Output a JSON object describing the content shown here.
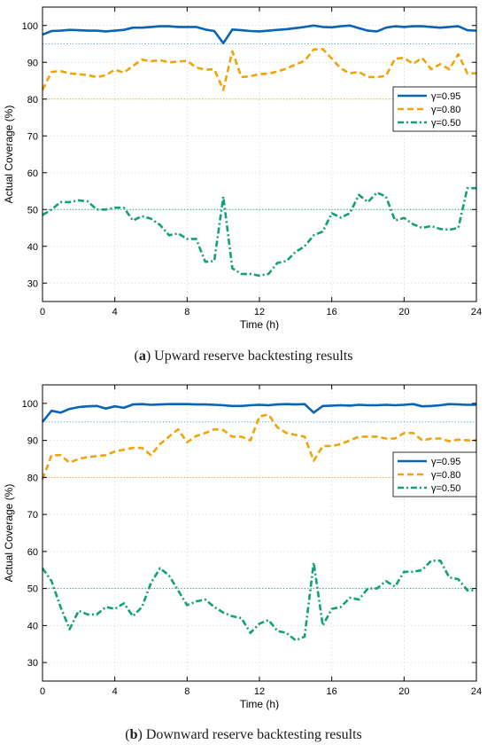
{
  "colors": {
    "series_095": "#0a64b4",
    "series_080": "#f0a30a",
    "series_050": "#12a07a",
    "ref_095": "#4aa8e0",
    "ref_080": "#f0a30a",
    "ref_050": "#12a07a",
    "grid": "#d9d9d9"
  },
  "chart_data": [
    {
      "type": "line",
      "caption_letter": "a",
      "caption_text": " Upward reserve backtesting results",
      "xlabel": "Time (h)",
      "ylabel": "Actual Coverage (%)",
      "xlim": [
        0,
        24
      ],
      "ylim": [
        25,
        105
      ],
      "xticks": [
        0,
        4,
        8,
        12,
        16,
        20,
        24
      ],
      "yticks": [
        30,
        40,
        50,
        60,
        70,
        80,
        90,
        100
      ],
      "grid": true,
      "legend_position": "right",
      "reference_lines": [
        {
          "y": 95,
          "color_key": "ref_095"
        },
        {
          "y": 80,
          "color_key": "ref_080"
        },
        {
          "y": 50,
          "color_key": "ref_050"
        }
      ],
      "series": [
        {
          "name": "γ=0.95",
          "style": "solid",
          "color_key": "series_095",
          "x": [
            0,
            0.5,
            1,
            1.5,
            2,
            2.5,
            3,
            3.5,
            4,
            4.5,
            5,
            5.5,
            6,
            6.5,
            7,
            7.5,
            8,
            8.5,
            9,
            9.5,
            10,
            10.5,
            11,
            11.5,
            12,
            12.5,
            13,
            13.5,
            14,
            14.5,
            15,
            15.5,
            16,
            16.5,
            17,
            17.5,
            18,
            18.5,
            19,
            19.5,
            20,
            20.5,
            21,
            21.5,
            22,
            22.5,
            23,
            23.5,
            24
          ],
          "y": [
            97.5,
            98.5,
            98.6,
            98.8,
            98.7,
            98.6,
            98.6,
            98.4,
            98.6,
            98.8,
            99.4,
            99.4,
            99.6,
            99.8,
            99.8,
            99.6,
            99.6,
            99.6,
            98.9,
            98.5,
            95.2,
            98.9,
            98.7,
            98.5,
            98.4,
            98.6,
            98.8,
            99.0,
            99.3,
            99.6,
            100.0,
            99.6,
            99.5,
            99.8,
            100.0,
            99.3,
            98.6,
            98.4,
            99.4,
            99.8,
            99.6,
            99.8,
            99.8,
            99.6,
            99.4,
            99.6,
            99.8,
            98.7,
            98.6
          ]
        },
        {
          "name": "γ=0.80",
          "style": "dashed",
          "color_key": "series_080",
          "x": [
            0,
            0.5,
            1,
            1.5,
            2,
            2.5,
            3,
            3.5,
            4,
            4.5,
            5,
            5.5,
            6,
            6.5,
            7,
            7.5,
            8,
            8.5,
            9,
            9.5,
            10,
            10.5,
            11,
            11.5,
            12,
            12.5,
            13,
            13.5,
            14,
            14.5,
            15,
            15.5,
            16,
            16.5,
            17,
            17.5,
            18,
            18.5,
            19,
            19.5,
            20,
            20.5,
            21,
            21.5,
            22,
            22.5,
            23,
            23.5,
            24
          ],
          "y": [
            82.5,
            87.4,
            87.6,
            87.0,
            86.8,
            86.5,
            86.0,
            86.5,
            88.0,
            87.2,
            89.0,
            90.7,
            90.3,
            90.6,
            90.0,
            90.2,
            90.4,
            88.6,
            88.0,
            88.1,
            82.5,
            93.0,
            86.0,
            86.2,
            86.8,
            86.9,
            87.5,
            88.3,
            89.4,
            90.4,
            93.5,
            93.6,
            91.0,
            88.3,
            87.0,
            87.4,
            86.0,
            86.0,
            86.3,
            91.0,
            91.2,
            89.6,
            91.2,
            88.1,
            89.5,
            88.1,
            92.2,
            87.0,
            87.0
          ]
        },
        {
          "name": "γ=0.50",
          "style": "dashdot",
          "color_key": "series_050",
          "x": [
            0,
            0.5,
            1,
            1.5,
            2,
            2.5,
            3,
            3.5,
            4,
            4.5,
            5,
            5.5,
            6,
            6.5,
            7,
            7.5,
            8,
            8.5,
            9,
            9.5,
            10,
            10.5,
            11,
            11.5,
            12,
            12.5,
            13,
            13.5,
            14,
            14.5,
            15,
            15.5,
            16,
            16.5,
            17,
            17.5,
            18,
            18.5,
            19,
            19.5,
            20,
            20.5,
            21,
            21.5,
            22,
            22.5,
            23,
            23.5,
            24
          ],
          "y": [
            48.5,
            50.0,
            52.0,
            52.0,
            52.5,
            52.2,
            50.0,
            50.0,
            50.5,
            50.5,
            47.0,
            48.2,
            47.5,
            45.8,
            43.0,
            43.5,
            42.0,
            42.0,
            35.8,
            36.0,
            53.5,
            34.0,
            32.5,
            32.5,
            32.0,
            32.5,
            35.5,
            36.0,
            38.5,
            40.0,
            43.0,
            44.0,
            49.0,
            47.8,
            49.0,
            54.0,
            52.0,
            54.6,
            53.5,
            47.0,
            47.7,
            46.0,
            45.0,
            45.5,
            44.7,
            44.5,
            45.0,
            55.8,
            55.8
          ]
        }
      ]
    },
    {
      "type": "line",
      "caption_letter": "b",
      "caption_text": " Downward reserve backtesting results",
      "xlabel": "Time (h)",
      "ylabel": "Actual Coverage (%)",
      "xlim": [
        0,
        24
      ],
      "ylim": [
        25,
        105
      ],
      "xticks": [
        0,
        4,
        8,
        12,
        16,
        20,
        24
      ],
      "yticks": [
        30,
        40,
        50,
        60,
        70,
        80,
        90,
        100
      ],
      "grid": true,
      "legend_position": "right",
      "reference_lines": [
        {
          "y": 95,
          "color_key": "ref_095"
        },
        {
          "y": 80,
          "color_key": "ref_080"
        },
        {
          "y": 50,
          "color_key": "ref_050"
        }
      ],
      "series": [
        {
          "name": "γ=0.95",
          "style": "solid",
          "color_key": "series_095",
          "x": [
            0,
            0.5,
            1,
            1.5,
            2,
            2.5,
            3,
            3.5,
            4,
            4.5,
            5,
            5.5,
            6,
            6.5,
            7,
            7.5,
            8,
            8.5,
            9,
            9.5,
            10,
            10.5,
            11,
            11.5,
            12,
            12.5,
            13,
            13.5,
            14,
            14.5,
            15,
            15.5,
            16,
            16.5,
            17,
            17.5,
            18,
            18.5,
            19,
            19.5,
            20,
            20.5,
            21,
            21.5,
            22,
            22.5,
            23,
            23.5,
            24
          ],
          "y": [
            95.0,
            98.0,
            97.5,
            98.5,
            99.0,
            99.2,
            99.3,
            98.6,
            99.2,
            98.8,
            99.7,
            99.8,
            99.6,
            99.7,
            99.8,
            99.8,
            99.8,
            99.7,
            99.7,
            99.6,
            99.5,
            99.3,
            99.3,
            99.5,
            99.6,
            99.5,
            99.7,
            99.8,
            99.7,
            99.8,
            97.5,
            99.3,
            99.4,
            99.5,
            99.4,
            99.6,
            99.5,
            99.5,
            99.6,
            99.5,
            99.6,
            99.8,
            99.2,
            99.3,
            99.5,
            99.8,
            99.7,
            99.6,
            99.6
          ]
        },
        {
          "name": "γ=0.80",
          "style": "dashed",
          "color_key": "series_080",
          "x": [
            0,
            0.5,
            1,
            1.5,
            2,
            2.5,
            3,
            3.5,
            4,
            4.5,
            5,
            5.5,
            6,
            6.5,
            7,
            7.5,
            8,
            8.5,
            9,
            9.5,
            10,
            10.5,
            11,
            11.5,
            12,
            12.5,
            13,
            13.5,
            14,
            14.5,
            15,
            15.5,
            16,
            16.5,
            17,
            17.5,
            18,
            18.5,
            19,
            19.5,
            20,
            20.5,
            21,
            21.5,
            22,
            22.5,
            23,
            23.5,
            24
          ],
          "y": [
            79.5,
            86.0,
            86.0,
            84.0,
            85.0,
            85.5,
            85.8,
            86.0,
            87.0,
            87.5,
            88.0,
            88.0,
            86.0,
            89.0,
            91.0,
            93.0,
            89.5,
            91.2,
            92.0,
            93.0,
            92.8,
            91.0,
            91.0,
            90.0,
            96.5,
            97.0,
            93.5,
            92.0,
            91.5,
            91.0,
            84.5,
            88.5,
            88.5,
            89.0,
            90.0,
            91.0,
            91.0,
            91.0,
            90.5,
            90.5,
            92.0,
            92.0,
            90.0,
            90.5,
            90.5,
            89.8,
            90.2,
            90.0,
            90.0
          ]
        },
        {
          "name": "γ=0.50",
          "style": "dashdot",
          "color_key": "series_050",
          "x": [
            0,
            0.5,
            1,
            1.5,
            2,
            2.5,
            3,
            3.5,
            4,
            4.5,
            5,
            5.5,
            6,
            6.5,
            7,
            7.5,
            8,
            8.5,
            9,
            9.5,
            10,
            10.5,
            11,
            11.5,
            12,
            12.5,
            13,
            13.5,
            14,
            14.5,
            15,
            15.5,
            16,
            16.5,
            17,
            17.5,
            18,
            18.5,
            19,
            19.5,
            20,
            20.5,
            21,
            21.5,
            22,
            22.5,
            23,
            23.5,
            24
          ],
          "y": [
            55.5,
            52.0,
            45.0,
            39.0,
            44.0,
            43.0,
            43.0,
            45.0,
            44.5,
            46.0,
            42.5,
            45.0,
            51.5,
            55.5,
            53.5,
            49.5,
            45.5,
            46.5,
            47.0,
            45.0,
            43.5,
            42.5,
            42.0,
            38.0,
            40.5,
            41.5,
            38.5,
            38.0,
            36.0,
            37.0,
            57.0,
            40.0,
            44.5,
            45.0,
            47.5,
            47.0,
            50.0,
            50.0,
            52.0,
            50.5,
            54.5,
            54.5,
            55.0,
            57.5,
            57.5,
            53.0,
            52.5,
            49.5,
            49.5
          ]
        }
      ]
    }
  ]
}
